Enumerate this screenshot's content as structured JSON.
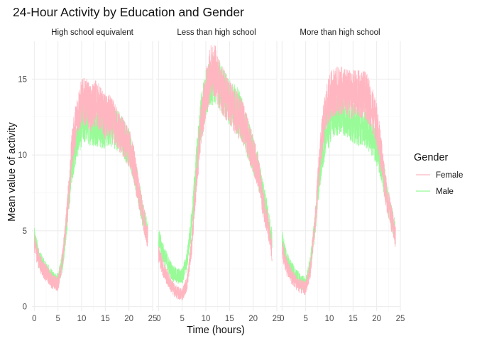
{
  "chart_data": {
    "type": "line",
    "title": "24-Hour Activity by Education and Gender",
    "xlabel": "Time (hours)",
    "ylabel": "Mean value of activity",
    "xlim": [
      -0.5,
      25
    ],
    "ylim": [
      -0.3,
      17.5
    ],
    "x_ticks": [
      0,
      5,
      10,
      15,
      20,
      25
    ],
    "y_ticks": [
      0,
      5,
      10,
      15
    ],
    "grid": true,
    "legend": {
      "title": "Gender",
      "position": "right"
    },
    "series_colors": {
      "Female": "#FFB6C1",
      "Male": "#98FB98"
    },
    "panels": [
      {
        "label": "High school equivalent",
        "series": [
          {
            "name": "Female",
            "x": [
              0,
              1,
              2,
              3,
              4,
              5,
              6,
              7,
              8,
              9,
              10,
              11,
              12,
              13,
              14,
              15,
              16,
              17,
              18,
              19,
              20,
              21,
              22,
              23,
              24
            ],
            "values": [
              4.2,
              3.0,
              2.4,
              2.0,
              1.6,
              1.5,
              3.2,
              6.5,
              10.5,
              12.5,
              13.5,
              13.5,
              13.0,
              13.5,
              13.0,
              12.5,
              12.5,
              12.0,
              11.5,
              11.0,
              10.5,
              9.5,
              7.5,
              6.0,
              4.5
            ]
          },
          {
            "name": "Male",
            "x": [
              0,
              1,
              2,
              3,
              4,
              5,
              6,
              7,
              8,
              9,
              10,
              11,
              12,
              13,
              14,
              15,
              16,
              17,
              18,
              19,
              20,
              21,
              22,
              23,
              24
            ],
            "values": [
              4.5,
              3.2,
              2.6,
              2.2,
              1.8,
              1.7,
              3.0,
              6.0,
              9.5,
              11.0,
              12.0,
              12.2,
              12.0,
              12.0,
              11.8,
              11.8,
              12.0,
              11.8,
              11.5,
              11.0,
              10.5,
              9.5,
              7.5,
              6.0,
              4.8
            ]
          }
        ]
      },
      {
        "label": "Less than high school",
        "series": [
          {
            "name": "Female",
            "x": [
              0,
              1,
              2,
              3,
              4,
              5,
              6,
              7,
              8,
              9,
              10,
              11,
              12,
              13,
              14,
              15,
              16,
              17,
              18,
              19,
              20,
              21,
              22,
              23,
              24
            ],
            "values": [
              3.5,
              2.5,
              1.8,
              1.2,
              0.9,
              0.8,
              1.5,
              4.0,
              8.5,
              12.0,
              14.0,
              15.5,
              15.5,
              14.5,
              14.0,
              13.5,
              13.0,
              12.5,
              12.0,
              11.0,
              10.0,
              9.0,
              7.0,
              5.5,
              3.5
            ]
          },
          {
            "name": "Male",
            "x": [
              0,
              1,
              2,
              3,
              4,
              5,
              6,
              7,
              8,
              9,
              10,
              11,
              12,
              13,
              14,
              15,
              16,
              17,
              18,
              19,
              20,
              21,
              22,
              23,
              24
            ],
            "values": [
              4.5,
              3.5,
              2.8,
              2.2,
              2.0,
              2.0,
              3.0,
              5.5,
              9.5,
              12.5,
              14.0,
              14.8,
              15.0,
              14.5,
              14.0,
              13.5,
              13.2,
              12.8,
              12.0,
              11.0,
              10.0,
              9.0,
              7.5,
              6.0,
              4.5
            ]
          }
        ]
      },
      {
        "label": "More than high school",
        "series": [
          {
            "name": "Female",
            "x": [
              0,
              1,
              2,
              3,
              4,
              5,
              6,
              7,
              8,
              9,
              10,
              11,
              12,
              13,
              14,
              15,
              16,
              17,
              18,
              19,
              20,
              21,
              22,
              23,
              24
            ],
            "values": [
              3.8,
              2.6,
              2.0,
              1.6,
              1.3,
              1.2,
              2.5,
              5.5,
              10.0,
              12.5,
              13.8,
              14.2,
              14.2,
              14.2,
              14.0,
              14.0,
              14.0,
              14.0,
              13.8,
              13.0,
              12.0,
              10.0,
              7.5,
              6.0,
              4.5
            ]
          },
          {
            "name": "Male",
            "x": [
              0,
              1,
              2,
              3,
              4,
              5,
              6,
              7,
              8,
              9,
              10,
              11,
              12,
              13,
              14,
              15,
              16,
              17,
              18,
              19,
              20,
              21,
              22,
              23,
              24
            ],
            "values": [
              4.3,
              3.0,
              2.4,
              2.0,
              1.6,
              1.5,
              2.8,
              5.5,
              9.0,
              11.0,
              12.0,
              12.5,
              12.8,
              12.8,
              12.5,
              12.2,
              12.0,
              12.0,
              11.8,
              11.2,
              10.5,
              9.5,
              7.5,
              6.0,
              4.8
            ]
          }
        ]
      }
    ]
  }
}
